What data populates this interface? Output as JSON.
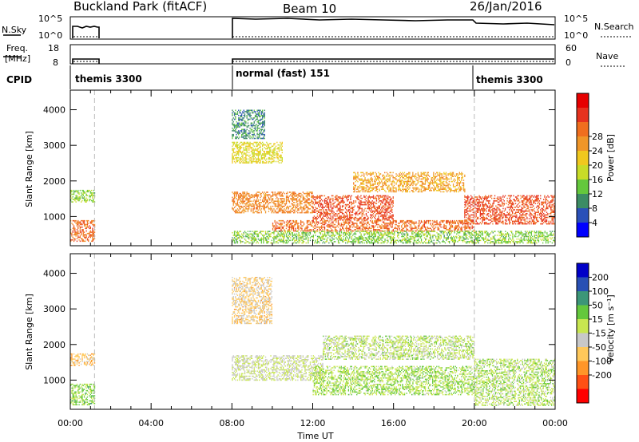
{
  "header": {
    "title": "Buckland Park (fitACF)",
    "beam": "Beam 10",
    "date": "26/Jan/2016"
  },
  "params": {
    "nsky_label": "N.Sky",
    "nsky_ticks": [
      "10^5",
      "10^0"
    ],
    "nsearch_label": "N.Search",
    "nsearch_ticks": [
      "10^5",
      "10^0"
    ],
    "freq_label_1": "Freq.",
    "freq_label_2": "[MHz]",
    "freq_ticks": [
      "18",
      "8"
    ],
    "nave_label": "Nave",
    "nave_ticks": [
      "60",
      "0"
    ],
    "cpid_label": "CPID",
    "cpid_modes": [
      {
        "start_hour": 0,
        "name": "themis 3300"
      },
      {
        "start_hour": 8,
        "name": "normal (fast) 151"
      },
      {
        "start_hour": 20,
        "name": "themis 3300"
      }
    ]
  },
  "axes": {
    "xlabel": "Time UT",
    "x_ticks": [
      "00:00",
      "04:00",
      "08:00",
      "12:00",
      "16:00",
      "20:00",
      "00:00"
    ],
    "ylabel": "Slant Range [km]",
    "y_ticks": [
      "1000",
      "2000",
      "3000",
      "4000"
    ]
  },
  "colorbars": {
    "power_label": "Power [dB]",
    "power_ticks": [
      "4",
      "8",
      "12",
      "16",
      "20",
      "24",
      "28"
    ],
    "velocity_label": "Velocity [m s⁻¹]",
    "velocity_ticks": [
      "200",
      "100",
      "50",
      "15",
      "-15",
      "-50",
      "-100",
      "-200"
    ]
  },
  "chart_data": [
    {
      "type": "heatmap",
      "name": "power",
      "title": "Buckland Park (fitACF) Beam 10 26/Jan/2016",
      "xlabel": "Time UT",
      "ylabel": "Slant Range [km]",
      "xlim": [
        0,
        24
      ],
      "ylim": [
        180,
        4550
      ],
      "zlabel": "Power [dB]",
      "zlim": [
        0,
        32
      ],
      "colorscale": [
        "#0000ff",
        "#2a50b8",
        "#3c8c64",
        "#64c83c",
        "#c8dc28",
        "#f0c81e",
        "#f09628",
        "#f06e1e",
        "#e6321e",
        "#e60000"
      ],
      "data_gaps_hours": [
        [
          1.2,
          8.0
        ]
      ],
      "echo_bands": [
        {
          "t0": 0.0,
          "t1": 1.2,
          "r0": 1400,
          "r1": 1750,
          "value": 12
        },
        {
          "t0": 0.0,
          "t1": 1.2,
          "r0": 300,
          "r1": 900,
          "value": 24
        },
        {
          "t0": 8.0,
          "t1": 9.6,
          "r0": 3200,
          "r1": 4000,
          "value": 8
        },
        {
          "t0": 8.0,
          "t1": 10.5,
          "r0": 2500,
          "r1": 3100,
          "value": 16
        },
        {
          "t0": 8.0,
          "t1": 12.0,
          "r0": 1100,
          "r1": 1700,
          "value": 22
        },
        {
          "t0": 12.0,
          "t1": 16.0,
          "r0": 900,
          "r1": 1600,
          "value": 26
        },
        {
          "t0": 14.0,
          "t1": 19.5,
          "r0": 1700,
          "r1": 2250,
          "value": 20
        },
        {
          "t0": 10.0,
          "t1": 20.0,
          "r0": 600,
          "r1": 900,
          "value": 24
        },
        {
          "t0": 19.5,
          "t1": 24.0,
          "r0": 800,
          "r1": 1600,
          "value": 26
        },
        {
          "t0": 8.0,
          "t1": 24.0,
          "r0": 250,
          "r1": 600,
          "value": 12
        }
      ]
    },
    {
      "type": "heatmap",
      "name": "velocity",
      "xlabel": "Time UT",
      "ylabel": "Slant Range [km]",
      "xlim": [
        0,
        24
      ],
      "ylim": [
        180,
        4550
      ],
      "zlabel": "Velocity [m s⁻¹]",
      "zlim": [
        -250,
        250
      ],
      "colorscale": [
        "#ff0000",
        "#ff5014",
        "#ff9628",
        "#ffc85a",
        "#c8c8c8",
        "#c8e650",
        "#64c83c",
        "#3c9678",
        "#2850b4",
        "#0000c8"
      ],
      "data_gaps_hours": [
        [
          1.2,
          8.0
        ]
      ],
      "echo_bands": [
        {
          "t0": 0.0,
          "t1": 1.2,
          "r0": 1400,
          "r1": 1750,
          "value": -80
        },
        {
          "t0": 0.0,
          "t1": 1.2,
          "r0": 300,
          "r1": 900,
          "value": 60
        },
        {
          "t0": 8.0,
          "t1": 10.0,
          "r0": 2600,
          "r1": 3900,
          "value": -60
        },
        {
          "t0": 8.0,
          "t1": 12.5,
          "r0": 1000,
          "r1": 1700,
          "value": 0
        },
        {
          "t0": 12.5,
          "t1": 20.0,
          "r0": 1600,
          "r1": 2250,
          "value": 20
        },
        {
          "t0": 12.0,
          "t1": 20.0,
          "r0": 600,
          "r1": 1400,
          "value": 40
        },
        {
          "t0": 20.0,
          "t1": 24.0,
          "r0": 300,
          "r1": 1600,
          "value": 30
        }
      ]
    }
  ]
}
